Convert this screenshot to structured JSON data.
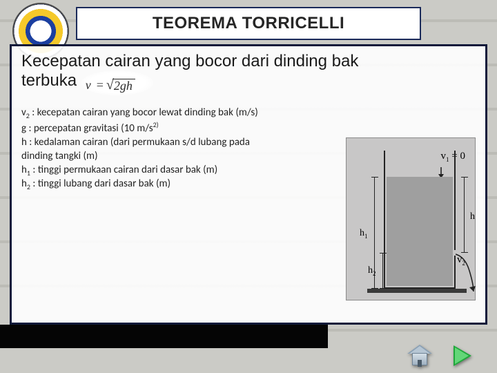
{
  "title": "TEOREMA TORRICELLI",
  "intro_line1": "Kecepatan cairan yang bocor dari dinding bak",
  "intro_line2": "terbuka",
  "formula": {
    "lhs": "v",
    "eq": "=",
    "radicand": "2gh"
  },
  "definitions": [
    {
      "sym": "v",
      "sub": "2",
      "text": " : kecepatan cairan yang bocor lewat dinding bak (m/s)"
    },
    {
      "sym": "g",
      "sub": "",
      "text": " : percepatan gravitasi  (10 m/s",
      "sup": "2)",
      "tail": ""
    },
    {
      "sym": "h",
      "sub": "",
      "text": " : kedalaman cairan (dari permukaan s/d lubang pada"
    },
    {
      "cont": "dinding tangki (m)"
    },
    {
      "sym": "h",
      "sub": "1",
      "text": " : tinggi permukaan cairan dari dasar bak (m)"
    },
    {
      "sym": "h",
      "sub": "2",
      "text": " : tinggi lubang dari dasar bak (m)"
    }
  ],
  "diagram": {
    "v1_label": "v",
    "v1_sub": "1",
    "v1_eq": " = 0",
    "h_label": "h",
    "h1_label": "h",
    "h1_sub": "1",
    "h2_label": "h",
    "h2_sub": "2",
    "v2_label": "v",
    "v2_sub": "2",
    "colors": {
      "panel": "#c8c7c7",
      "water": "#9f9f9f",
      "line": "#222222"
    }
  },
  "nav": {
    "home": "home-button",
    "next": "next-button"
  },
  "colors": {
    "title_border": "#1b2a5a",
    "content_border": "#0e1a3a",
    "bg_brick": "#c9c9c4",
    "black_bar": "#050505"
  }
}
